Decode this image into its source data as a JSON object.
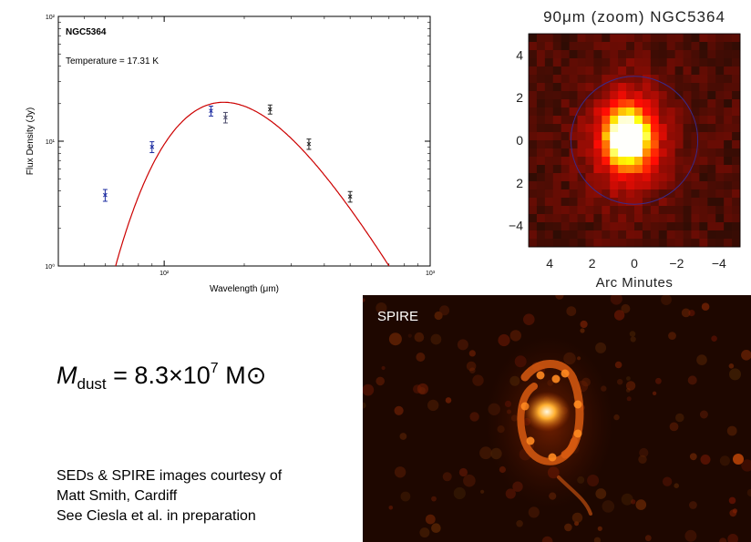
{
  "chart_data": [
    {
      "type": "scatter",
      "title": "NGC5364",
      "annotation": "Temperature = 17.31 K",
      "xlabel": "Wavelength (μm)",
      "ylabel": "Flux Density (Jy)",
      "xscale": "log",
      "yscale": "log",
      "xlim": [
        40,
        1000
      ],
      "ylim": [
        1,
        100
      ],
      "xticks": [
        {
          "value": 100,
          "label": "10²"
        },
        {
          "value": 1000,
          "label": "10³"
        }
      ],
      "yticks": [
        {
          "value": 1,
          "label": "10⁰"
        },
        {
          "value": 10,
          "label": "10¹"
        },
        {
          "value": 100,
          "label": "10²"
        }
      ],
      "points": [
        {
          "x": 60,
          "y": 3.7,
          "err": 0.4,
          "color": "#1a2aa0"
        },
        {
          "x": 90,
          "y": 9.0,
          "err": 0.9,
          "color": "#1a2aa0"
        },
        {
          "x": 150,
          "y": 17.5,
          "err": 1.6,
          "color": "#1a2aa0"
        },
        {
          "x": 170,
          "y": 15.5,
          "err": 1.5,
          "color": "#4a4a6a"
        },
        {
          "x": 250,
          "y": 18.0,
          "err": 1.5,
          "color": "#222222"
        },
        {
          "x": 350,
          "y": 9.5,
          "err": 0.9,
          "color": "#222222"
        },
        {
          "x": 500,
          "y": 3.6,
          "err": 0.35,
          "color": "#222222"
        }
      ],
      "model": {
        "type": "modified-blackbody",
        "temperature_K": 17.31,
        "peak_x": 170,
        "peak_y": 20.5,
        "color": "#cc0000"
      }
    },
    {
      "type": "heatmap",
      "title": "90μm (zoom) NGC5364",
      "xlabel": "Arc Minutes",
      "xticks": [
        4,
        2,
        0,
        -2,
        -4
      ],
      "xtick_labels": [
        "4",
        "2",
        "0",
        "−2",
        "−4"
      ],
      "yticks": [
        4,
        2,
        0,
        2,
        -4
      ],
      "ytick_labels": [
        "4",
        "2",
        "0",
        "2",
        "−4"
      ],
      "xlim": [
        5,
        -5
      ],
      "ylim": [
        -5,
        5
      ],
      "aperture_radius_arcmin": 3.0,
      "colormap": "hot"
    }
  ],
  "spire": {
    "label": "SPIRE"
  },
  "mass": {
    "symbol": "M",
    "subscript": "dust",
    "equals": "= 8.3×10",
    "exponent": "7",
    "unit": "M",
    "sun": "⊙"
  },
  "credits": {
    "line1": "SEDs & SPIRE images courtesy of",
    "line2": "Matt Smith, Cardiff",
    "line3": "See Ciesla et al. in preparation"
  }
}
